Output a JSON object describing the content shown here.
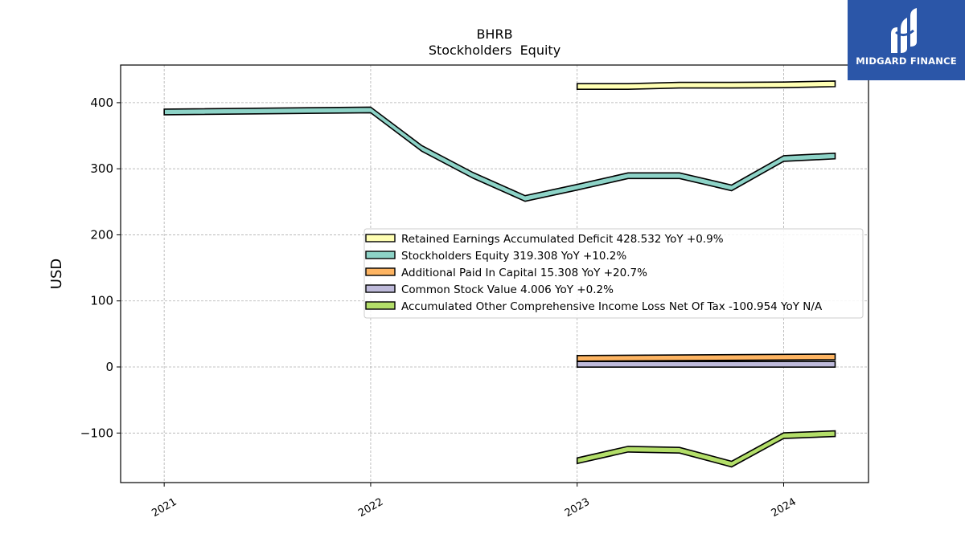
{
  "logo": {
    "text": "MIDGARD FINANCE"
  },
  "chart_data": {
    "type": "line",
    "title": "BHRB",
    "subtitle": "Stockholders  Equity",
    "ylabel": "USD",
    "xlabel": "",
    "ylim": [
      -175,
      457
    ],
    "yticks": [
      -100,
      0,
      100,
      200,
      300,
      400
    ],
    "ytick_labels": [
      "−100",
      "0",
      "100",
      "200",
      "300",
      "400"
    ],
    "xlim": [
      "2020-10-16",
      "2024-05-30"
    ],
    "xticks": [
      "2021-01-01",
      "2022-01-01",
      "2023-01-01",
      "2024-01-01"
    ],
    "xtick_labels": [
      "2021",
      "2022",
      "2023",
      "2024"
    ],
    "grid": true,
    "legend_position": "center-right",
    "series": [
      {
        "name": "Retained Earnings Accumulated Deficit",
        "legend_label": "Retained Earnings Accumulated Deficit  428.532 YoY +0.9%",
        "color": "#ffffb3",
        "x": [
          "2023-01-01",
          "2023-04-01",
          "2023-07-01",
          "2023-10-01",
          "2024-01-01",
          "2024-04-01"
        ],
        "y": [
          424.5,
          424.5,
          426.5,
          426.5,
          427.0,
          428.5
        ]
      },
      {
        "name": "Stockholders Equity",
        "legend_label": "Stockholders Equity  319.308 YoY +10.2%",
        "color": "#8dd3c7",
        "x": [
          "2021-01-01",
          "2022-01-01",
          "2022-04-01",
          "2022-07-01",
          "2022-10-01",
          "2023-01-01",
          "2023-04-01",
          "2023-07-01",
          "2023-10-01",
          "2024-01-01",
          "2024-04-01"
        ],
        "y": [
          386,
          389,
          331,
          290,
          255,
          272,
          289.5,
          289.5,
          271,
          315.5,
          319.3
        ]
      },
      {
        "name": "Additional Paid In Capital",
        "legend_label": "Additional Paid In Capital  15.308 YoY +20.7%",
        "color": "#fdb462",
        "x": [
          "2023-01-01",
          "2024-04-01"
        ],
        "y": [
          13,
          15.3
        ]
      },
      {
        "name": "Common Stock Value",
        "legend_label": "Common Stock Value  4.006 YoY +0.2%",
        "color": "#bebada",
        "x": [
          "2023-01-01",
          "2024-04-01"
        ],
        "y": [
          4.0,
          4.0
        ]
      },
      {
        "name": "Accumulated Other Comprehensive Income Loss Net Of Tax",
        "legend_label": "Accumulated Other Comprehensive Income Loss Net Of Tax  -100.954 YoY N/A",
        "color": "#b3de69",
        "x": [
          "2023-01-01",
          "2023-04-01",
          "2023-07-01",
          "2023-10-01",
          "2024-01-01",
          "2024-04-01"
        ],
        "y": [
          -142,
          -124.5,
          -126,
          -147,
          -104,
          -101
        ]
      }
    ]
  }
}
